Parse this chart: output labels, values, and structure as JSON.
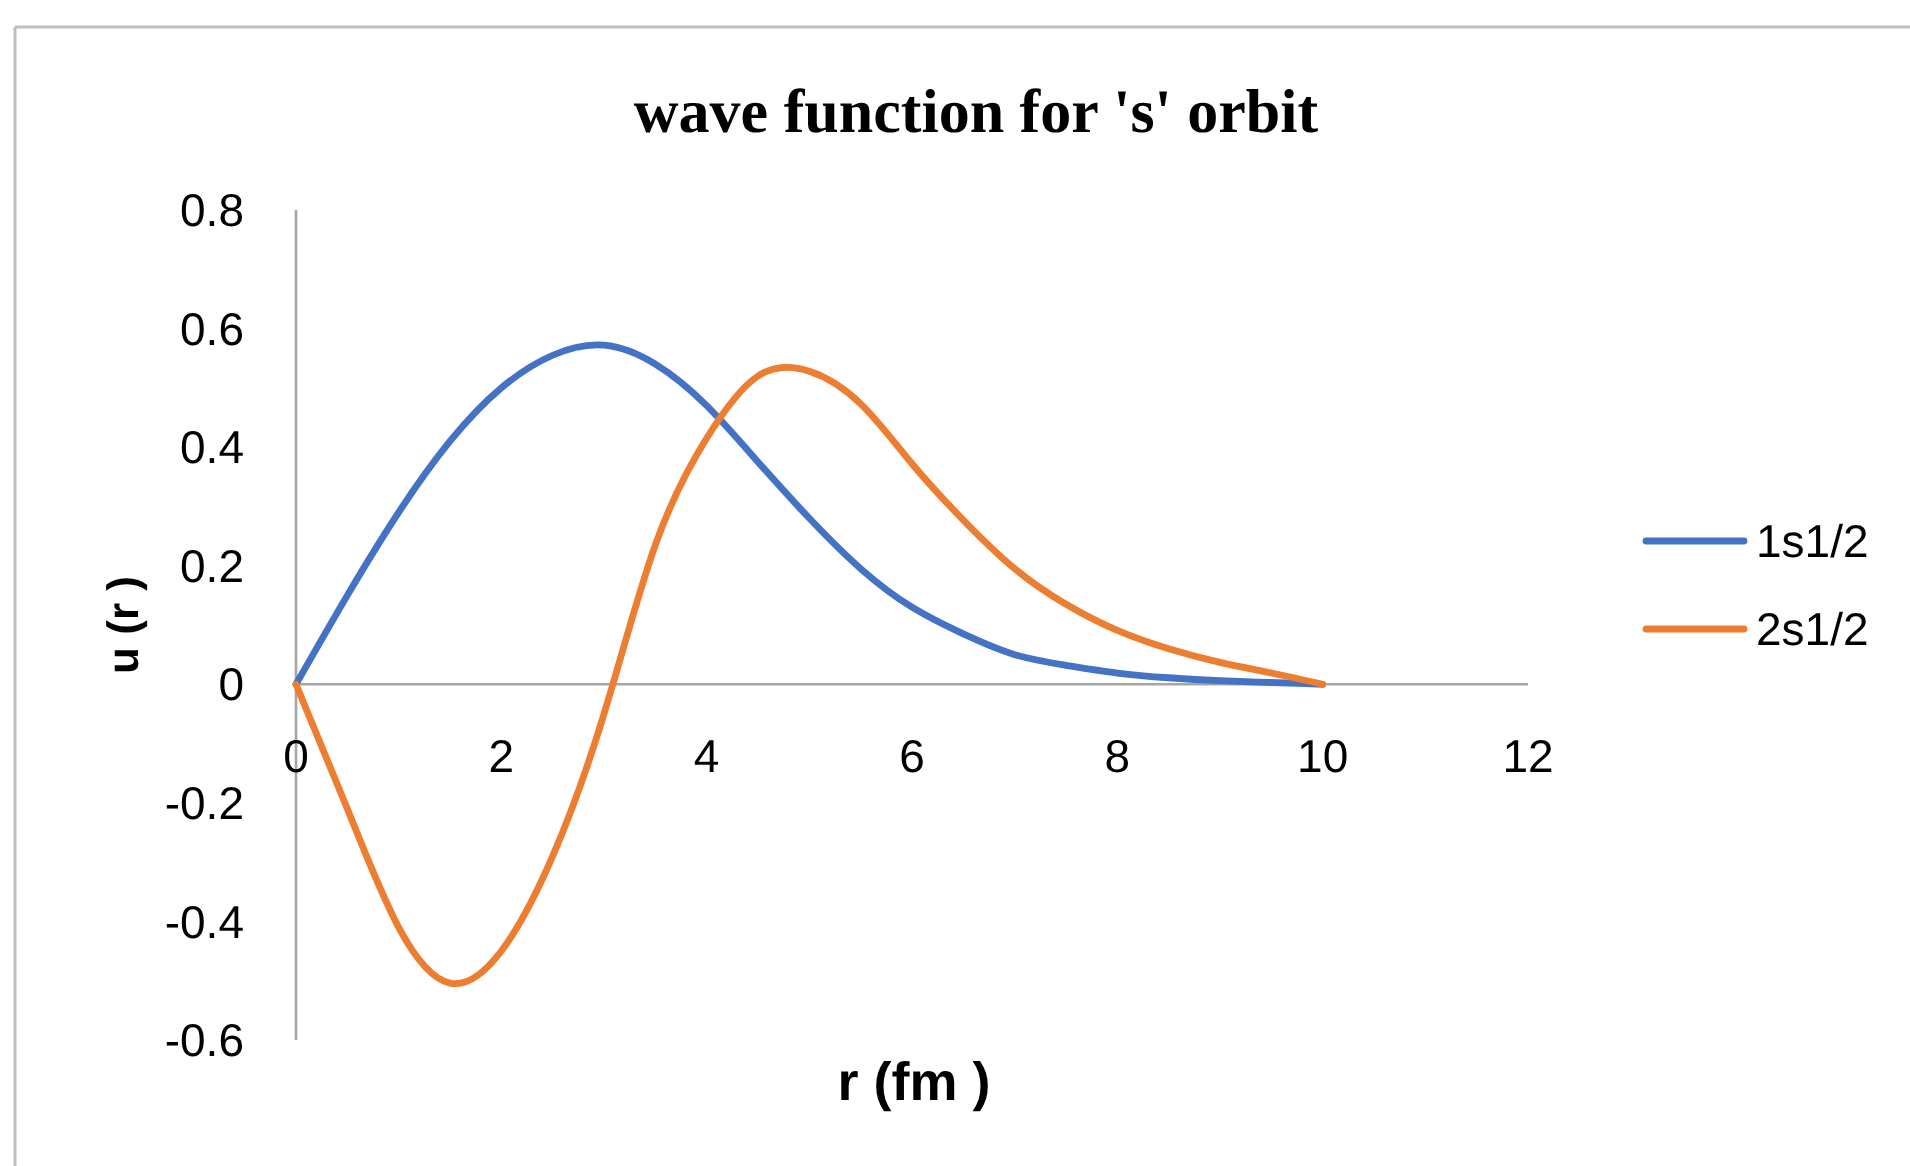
{
  "chart_data": {
    "type": "line",
    "title": "wave function for 's' orbit",
    "xlabel": "r (fm )",
    "ylabel": "u (r )",
    "x": [
      0,
      0.5,
      1,
      1.5,
      2,
      2.5,
      3,
      3.5,
      4,
      4.5,
      5,
      5.5,
      6,
      6.5,
      7,
      7.5,
      8,
      8.5,
      9,
      9.5,
      10
    ],
    "series": [
      {
        "name": "1s1/2",
        "color": "#4472c4",
        "values": [
          0,
          0.15,
          0.29,
          0.41,
          0.5,
          0.555,
          0.572,
          0.54,
          0.47,
          0.375,
          0.28,
          0.195,
          0.13,
          0.085,
          0.05,
          0.032,
          0.019,
          0.011,
          0.006,
          0.003,
          0
        ]
      },
      {
        "name": "2s1/2",
        "color": "#ed7d31",
        "values": [
          0,
          -0.21,
          -0.41,
          -0.504,
          -0.45,
          -0.29,
          -0.05,
          0.235,
          0.415,
          0.52,
          0.528,
          0.473,
          0.372,
          0.277,
          0.195,
          0.135,
          0.091,
          0.06,
          0.037,
          0.019,
          0
        ]
      }
    ],
    "xlim": [
      0,
      12
    ],
    "xticks": [
      0,
      2,
      4,
      6,
      8,
      10,
      12
    ],
    "ylim": [
      -0.6,
      0.8
    ],
    "yticks": [
      -0.6,
      -0.4,
      -0.2,
      0,
      0.2,
      0.4,
      0.6,
      0.8
    ],
    "legend": "right"
  }
}
